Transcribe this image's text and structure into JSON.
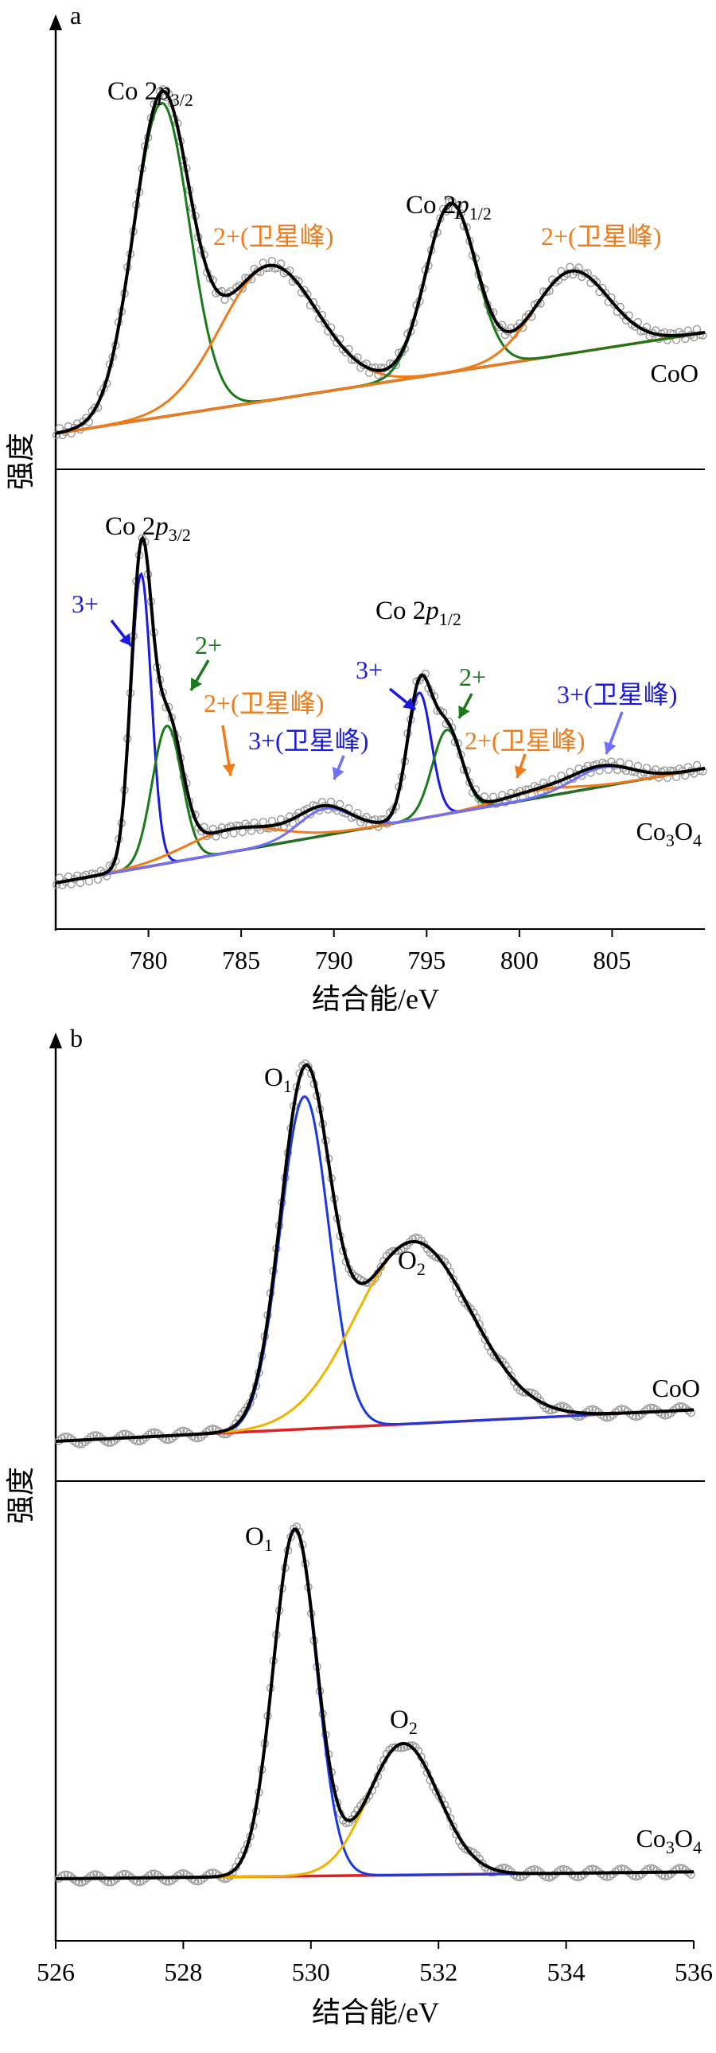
{
  "figure": {
    "colors": {
      "axis": "#000000",
      "raw": "#9a9a9a",
      "envelope": "#000000",
      "baseline": "#e02020",
      "co_p32": "#1a7a1a",
      "satellite2": "#f07b18",
      "co3plus": "#1a1ae0",
      "sat3": "#7070ff",
      "o1": "#1a3ae0",
      "o2": "#f0b400"
    }
  },
  "chart_data": [
    {
      "panel": "a",
      "type": "line",
      "title": "",
      "xlabel": "结合能/eV",
      "ylabel": "强度",
      "xlim": [
        775,
        810
      ],
      "x_reversed": false,
      "xticks": [
        "780",
        "785",
        "790",
        "795",
        "800",
        "805"
      ],
      "y_ticks_shown": false,
      "subplots": [
        {
          "sample": "CoO",
          "labels": {
            "p32": "Co 2p3/2",
            "p12": "Co 2p1/2",
            "sat_left": "2+(卫星峰)",
            "sat_right": "2+(卫星峰)"
          },
          "series": [
            {
              "name": "Co 2p3/2",
              "component": "2+",
              "x": [
                780.7
              ],
              "height": [
                0.84
              ],
              "width": [
                1.5
              ]
            },
            {
              "name": "2+(卫星峰)",
              "component": "sat",
              "x": [
                786.5
              ],
              "height": [
                0.36
              ],
              "width": [
                2.6
              ]
            },
            {
              "name": "Co 2p1/2",
              "component": "2+",
              "x": [
                796.3
              ],
              "height": [
                0.45
              ],
              "width": [
                1.35
              ]
            },
            {
              "name": "2+(卫星峰)",
              "component": "sat",
              "x": [
                802.8
              ],
              "height": [
                0.22
              ],
              "width": [
                2.0
              ]
            },
            {
              "name": "baseline",
              "x": [
                775,
                810
              ],
              "y": [
                0.0,
                0.27
              ]
            }
          ]
        },
        {
          "sample": "Co3O4",
          "labels": {
            "p32": "Co 2p3/2",
            "p12": "Co 2p1/2",
            "l3plus_a": "3+",
            "l2plus_a": "2+",
            "lsat2_a": "2+(卫星峰)",
            "lsat3_a": "3+(卫星峰)",
            "l3plus_b": "3+",
            "l2plus_b": "2+",
            "lsat2_b": "2+(卫星峰)",
            "lsat3_b": "3+(卫星峰)"
          },
          "series": [
            {
              "name": "3+",
              "x": [
                779.6
              ],
              "height": [
                0.77
              ],
              "width": [
                0.55
              ]
            },
            {
              "name": "2+",
              "x": [
                781.0
              ],
              "height": [
                0.36
              ],
              "width": [
                0.8
              ]
            },
            {
              "name": "3+",
              "x": [
                794.6
              ],
              "height": [
                0.33
              ],
              "width": [
                0.65
              ]
            },
            {
              "name": "2+",
              "x": [
                796.1
              ],
              "height": [
                0.22
              ],
              "width": [
                0.8
              ]
            },
            {
              "name": "2+(卫星峰)",
              "x": [
                784.5,
                801.0
              ],
              "height": [
                0.06,
                0.02
              ],
              "width": [
                2.5,
                2.0
              ]
            },
            {
              "name": "3+(卫星峰)",
              "x": [
                789.5,
                804.5
              ],
              "height": [
                0.07,
                0.05
              ],
              "width": [
                1.4,
                1.6
              ]
            },
            {
              "name": "baseline",
              "x": [
                775,
                810
              ],
              "y": [
                0.0,
                0.3
              ]
            }
          ]
        }
      ]
    },
    {
      "panel": "b",
      "type": "line",
      "title": "",
      "xlabel": "结合能/eV",
      "ylabel": "强度",
      "xlim": [
        526,
        536
      ],
      "x_reversed": false,
      "xticks": [
        "526",
        "528",
        "530",
        "532",
        "534",
        "536"
      ],
      "y_ticks_shown": false,
      "subplots": [
        {
          "sample": "CoO",
          "labels": {
            "o1": "O",
            "o1_sub": "1",
            "o2": "O",
            "o2_sub": "2"
          },
          "series": [
            {
              "name": "O1",
              "x": [
                529.9
              ],
              "height": [
                0.95
              ],
              "width": [
                0.38
              ]
            },
            {
              "name": "O2",
              "x": [
                531.6
              ],
              "height": [
                0.52
              ],
              "width": [
                0.9
              ]
            },
            {
              "name": "baseline",
              "x": [
                526,
                536
              ],
              "y": [
                0.0,
                0.09
              ]
            }
          ]
        },
        {
          "sample": "Co3O4",
          "labels": {
            "o1": "O",
            "o1_sub": "1",
            "o2": "O",
            "o2_sub": "2"
          },
          "series": [
            {
              "name": "O1",
              "x": [
                529.75
              ],
              "height": [
                1.0
              ],
              "width": [
                0.34
              ]
            },
            {
              "name": "O2",
              "x": [
                531.45
              ],
              "height": [
                0.38
              ],
              "width": [
                0.55
              ]
            },
            {
              "name": "baseline",
              "x": [
                526,
                536
              ],
              "y": [
                0.0,
                0.02
              ]
            }
          ]
        }
      ]
    }
  ]
}
